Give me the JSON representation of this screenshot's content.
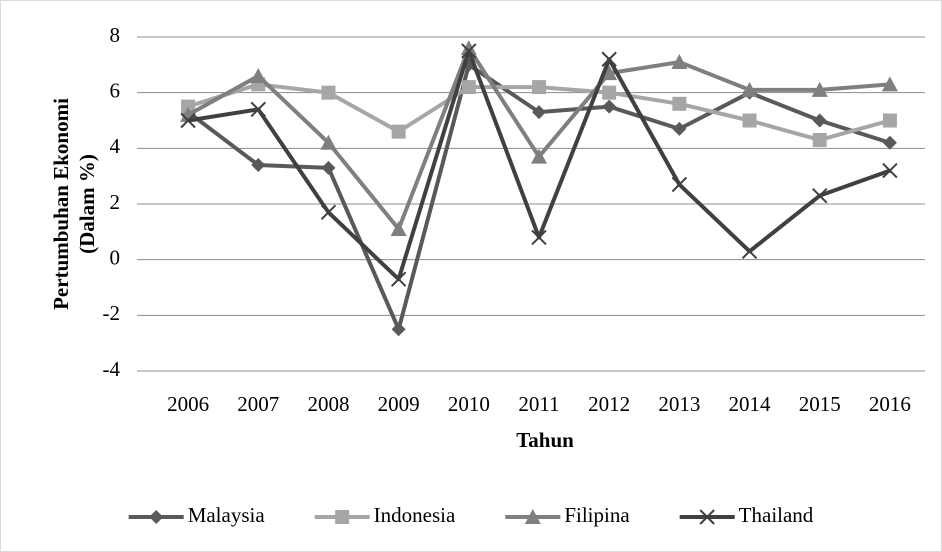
{
  "chart_data": {
    "type": "line",
    "x_label": "Tahun",
    "y_label": [
      "Pertumbuhan Ekonomi",
      "(Dalam %)"
    ],
    "categories": [
      "2006",
      "2007",
      "2008",
      "2009",
      "2010",
      "2011",
      "2012",
      "2013",
      "2014",
      "2015",
      "2016"
    ],
    "series": [
      {
        "name": "Malaysia",
        "color": "#595959",
        "marker": "diamond",
        "values": [
          5.3,
          3.4,
          3.3,
          -2.5,
          7.0,
          5.3,
          5.5,
          4.7,
          6.0,
          5.0,
          4.2
        ]
      },
      {
        "name": "Indonesia",
        "color": "#a6a6a6",
        "marker": "square",
        "values": [
          5.5,
          6.3,
          6.0,
          4.6,
          6.2,
          6.2,
          6.0,
          5.6,
          5.0,
          4.3,
          5.0
        ]
      },
      {
        "name": "Filipina",
        "color": "#7f7f7f",
        "marker": "triangle",
        "values": [
          5.2,
          6.6,
          4.2,
          1.1,
          7.6,
          3.7,
          6.7,
          7.1,
          6.1,
          6.1,
          6.3
        ]
      },
      {
        "name": "Thailand",
        "color": "#404040",
        "marker": "x",
        "values": [
          5.0,
          5.4,
          1.7,
          -0.7,
          7.5,
          0.8,
          7.2,
          2.7,
          0.3,
          2.3,
          3.2
        ]
      }
    ],
    "ylim": [
      -4,
      8
    ],
    "yticks": [
      -4,
      -2,
      0,
      2,
      4,
      6,
      8
    ],
    "grid": true,
    "legend": "bottom"
  }
}
